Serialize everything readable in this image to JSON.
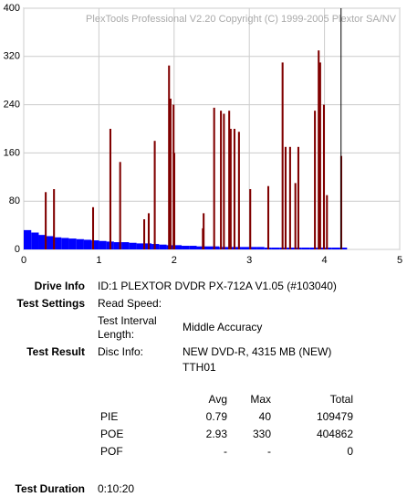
{
  "chart_data": {
    "type": "bar",
    "annotation": "PlexTools Professional V2.20 Copyright (C) 1999-2005 Plextor SA/NV",
    "xlim": [
      0,
      5
    ],
    "xticks": [
      0,
      1,
      2,
      3,
      4,
      5
    ],
    "ylim": [
      0,
      400
    ],
    "yticks": [
      0,
      80,
      160,
      240,
      320,
      400
    ],
    "grid": true,
    "end_marker_x": 4.22,
    "series": [
      {
        "color": "#0000ff",
        "bar_width": 0.1,
        "x": [
          0,
          0.1,
          0.2,
          0.3,
          0.4,
          0.5,
          0.6,
          0.7,
          0.8,
          0.9,
          1,
          1.1,
          1.2,
          1.3,
          1.4,
          1.5,
          1.6,
          1.7,
          1.8,
          1.9,
          2,
          2.1,
          2.2,
          2.3,
          2.4,
          2.5,
          2.6,
          2.7,
          2.8,
          2.9,
          3,
          3.1,
          3.2,
          3.3,
          3.4,
          3.5,
          3.6,
          3.7,
          3.8,
          3.9,
          4,
          4.1,
          4.2
        ],
        "values": [
          32,
          28,
          24,
          22,
          20,
          19,
          18,
          17,
          16,
          15,
          14,
          13,
          12,
          12,
          11,
          10,
          10,
          9,
          8,
          7,
          7,
          6,
          6,
          5,
          5,
          5,
          4,
          4,
          4,
          4,
          4,
          4,
          3,
          3,
          3,
          3,
          3,
          3,
          3,
          3,
          3,
          3,
          3
        ]
      },
      {
        "color": "#800000",
        "bar_width": 0.025,
        "x": [
          0.28,
          0.39,
          0.91,
          1.14,
          1.27,
          1.59,
          1.65,
          1.73,
          1.92,
          1.94,
          1.98,
          1.99,
          2.37,
          2.38,
          2.52,
          2.61,
          2.65,
          2.72,
          2.74,
          2.79,
          2.85,
          3.0,
          3.24,
          3.43,
          3.47,
          3.53,
          3.6,
          3.64,
          3.86,
          3.91,
          3.93,
          3.98,
          4.02,
          4.21
        ],
        "values": [
          95,
          100,
          70,
          200,
          145,
          50,
          60,
          180,
          305,
          250,
          240,
          160,
          35,
          60,
          235,
          230,
          225,
          230,
          200,
          200,
          195,
          100,
          105,
          310,
          170,
          170,
          110,
          170,
          230,
          330,
          310,
          240,
          90,
          155
        ]
      }
    ]
  },
  "info": [
    {
      "label": "Drive Info",
      "items": [
        "ID:1 PLEXTOR DVDR PX-712A V1.05 (#103040)"
      ]
    },
    {
      "label": "Test Settings",
      "items": [
        "Read Speed:",
        "Test Interval Length:",
        "Middle Accuracy"
      ]
    },
    {
      "label": "Test Result",
      "items": [
        "Disc Info:",
        "NEW DVD-R, 4315 MB (NEW)",
        "TTH01"
      ]
    }
  ],
  "stats": {
    "columns": [
      "Avg",
      "Max",
      "Total"
    ],
    "rows": [
      [
        "PIE",
        0.79,
        40,
        109479
      ],
      [
        "POE",
        2.93,
        330,
        404862
      ],
      [
        "POF",
        "-",
        "-",
        0
      ]
    ]
  },
  "duration": {
    "label": "Test Duration",
    "value": "0:10:20"
  }
}
